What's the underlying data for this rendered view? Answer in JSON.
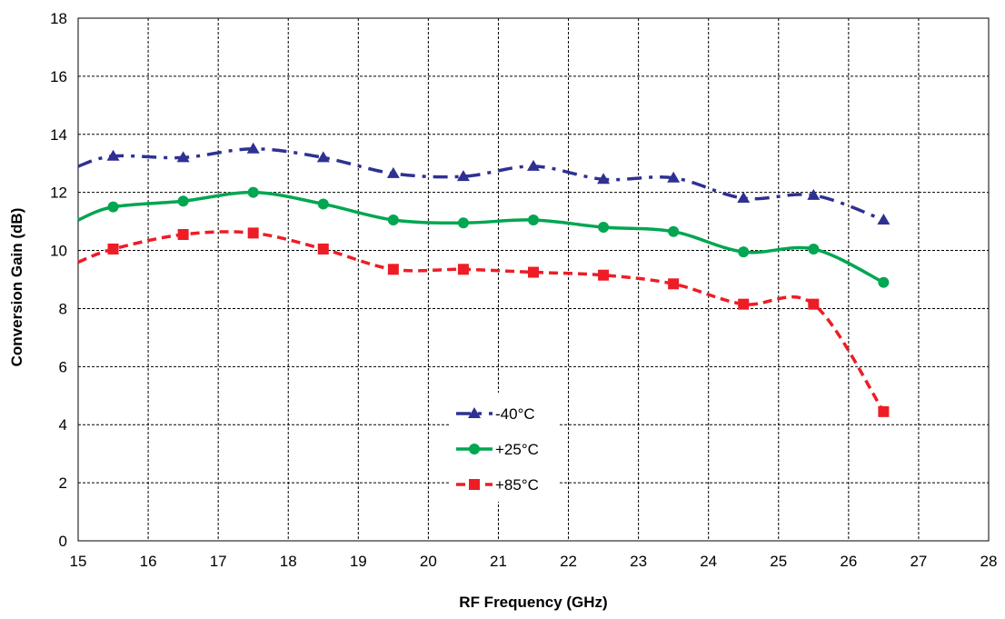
{
  "chart_data": {
    "type": "line",
    "title": "",
    "xlabel": "RF Frequency (GHz)",
    "ylabel": "Conversion Gain  (dB)",
    "xlim": [
      15,
      28
    ],
    "ylim": [
      0,
      18
    ],
    "xticks": [
      "15",
      "16",
      "17",
      "18",
      "19",
      "20",
      "21",
      "22",
      "23",
      "24",
      "25",
      "26",
      "27",
      "28"
    ],
    "yticks": [
      "0",
      "2",
      "4",
      "6",
      "8",
      "10",
      "12",
      "14",
      "16",
      "18"
    ],
    "grid": true,
    "legend_position": "bottom-center",
    "series": [
      {
        "name": "-40°C",
        "color": "#2e3192",
        "marker": "triangle",
        "dash": "dash-dot",
        "x": [
          15,
          15.5,
          16.5,
          17.5,
          18.5,
          19.5,
          20.5,
          21.5,
          22.5,
          23.5,
          24.5,
          25.5,
          26.5
        ],
        "y": [
          12.9,
          13.25,
          13.2,
          13.5,
          13.2,
          12.65,
          12.55,
          12.9,
          12.45,
          12.5,
          11.8,
          11.9,
          11.05
        ]
      },
      {
        "name": "+25°C",
        "color": "#00a651",
        "marker": "circle",
        "dash": "solid",
        "x": [
          15,
          15.5,
          16.5,
          17.5,
          18.5,
          19.5,
          20.5,
          21.5,
          22.5,
          23.5,
          24.5,
          25.5,
          26.5
        ],
        "y": [
          11.05,
          11.5,
          11.7,
          12.0,
          11.6,
          11.05,
          10.95,
          11.05,
          10.8,
          10.65,
          9.95,
          10.05,
          8.9
        ]
      },
      {
        "name": "+85°C",
        "color": "#ee1c25",
        "marker": "square",
        "dash": "dashed",
        "x": [
          15,
          15.5,
          16.5,
          17.5,
          18.5,
          19.5,
          20.5,
          21.5,
          22.5,
          23.5,
          24.5,
          25.5,
          26.5
        ],
        "y": [
          9.6,
          10.05,
          10.55,
          10.6,
          10.05,
          9.35,
          9.35,
          9.25,
          9.15,
          8.85,
          8.15,
          8.15,
          4.45
        ]
      }
    ]
  }
}
